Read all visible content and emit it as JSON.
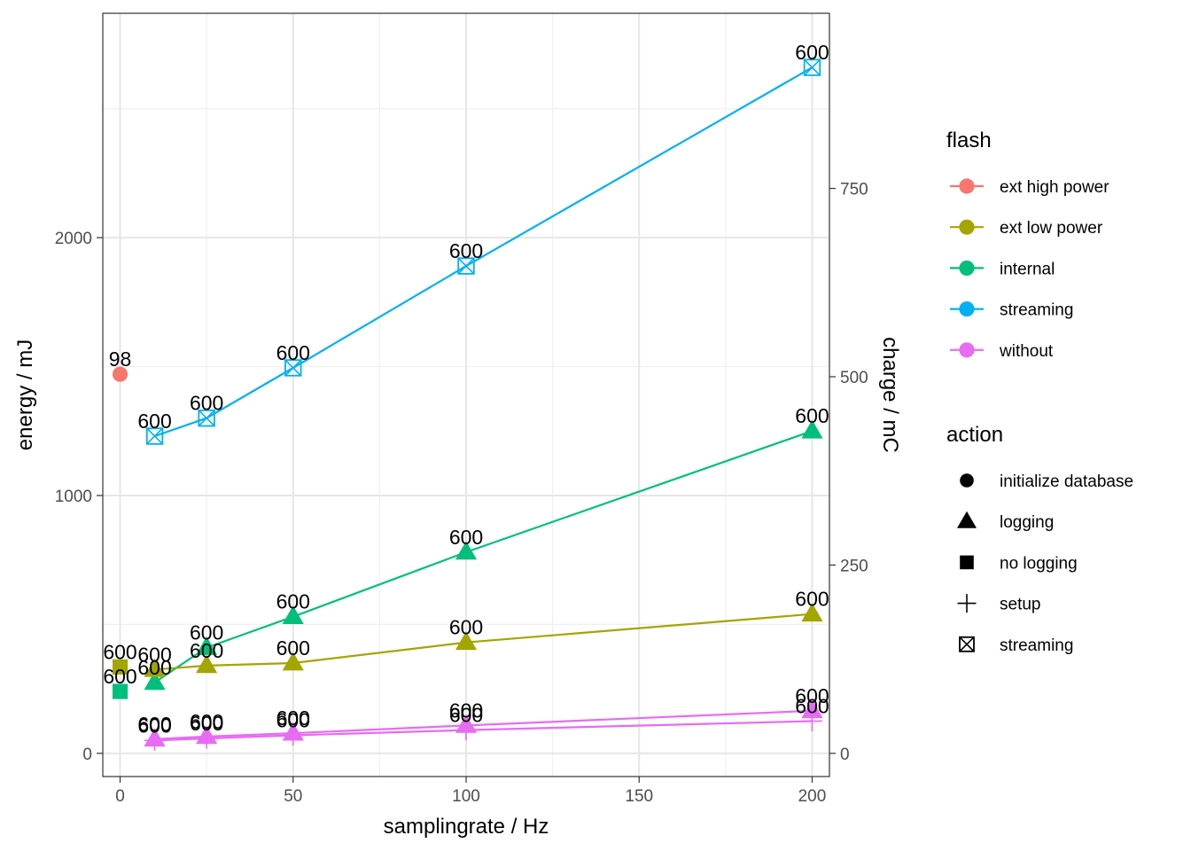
{
  "chart_data": {
    "type": "line",
    "xlabel": "samplingrate / Hz",
    "ylabel": "energy / mJ",
    "y2label": "charge / mC",
    "xlim": [
      -5,
      205
    ],
    "ylim": [
      -90,
      2870
    ],
    "y2lim": [
      -30.8,
      982.5
    ],
    "x_ticks": [
      0,
      50,
      100,
      150,
      200
    ],
    "y_ticks": [
      0,
      1000,
      2000
    ],
    "y2_ticks": [
      0,
      250,
      500,
      750
    ],
    "x_tick_labels": [
      "0",
      "50",
      "100",
      "150",
      "200"
    ],
    "y_tick_labels": [
      "0",
      "1000",
      "2000"
    ],
    "y2_tick_labels": [
      "0",
      "250",
      "500",
      "750"
    ],
    "grid": true,
    "legend_position": "right",
    "legends": [
      {
        "title": "flash",
        "entries": [
          {
            "label": "ext high power",
            "color": "#F8766D"
          },
          {
            "label": "ext low power",
            "color": "#A3A500"
          },
          {
            "label": "internal",
            "color": "#00BF7D"
          },
          {
            "label": "streaming",
            "color": "#00B0F6"
          },
          {
            "label": "without",
            "color": "#E76BF3"
          }
        ]
      },
      {
        "title": "action",
        "entries": [
          {
            "label": "initialize database",
            "shape": "circle"
          },
          {
            "label": "logging",
            "shape": "triangle"
          },
          {
            "label": "no logging",
            "shape": "square"
          },
          {
            "label": "setup",
            "shape": "plus"
          },
          {
            "label": "streaming",
            "shape": "boxcross"
          }
        ]
      }
    ],
    "series": [
      {
        "flash": "ext high power",
        "action": "initialize database",
        "color": "#F8766D",
        "shape": "circle",
        "points": [
          {
            "x": 0,
            "y": 1470,
            "label": "98"
          }
        ]
      },
      {
        "flash": "streaming",
        "action": "streaming",
        "color": "#00B0F6",
        "shape": "boxcross",
        "points": [
          {
            "x": 10,
            "y": 1230,
            "label": "600"
          },
          {
            "x": 25,
            "y": 1300,
            "label": "600"
          },
          {
            "x": 50,
            "y": 1495,
            "label": "600"
          },
          {
            "x": 100,
            "y": 1890,
            "label": "600"
          },
          {
            "x": 200,
            "y": 2660,
            "label": "600"
          }
        ]
      },
      {
        "flash": "internal",
        "action": "logging",
        "color": "#00BF7D",
        "shape": "triangle",
        "points": [
          {
            "x": 10,
            "y": 275,
            "label": "600"
          },
          {
            "x": 25,
            "y": 410,
            "label": "600"
          },
          {
            "x": 50,
            "y": 530,
            "label": "600"
          },
          {
            "x": 100,
            "y": 780,
            "label": "600"
          },
          {
            "x": 200,
            "y": 1250,
            "label": "600"
          }
        ]
      },
      {
        "flash": "internal",
        "action": "no logging",
        "color": "#00BF7D",
        "shape": "square",
        "points": [
          {
            "x": 0,
            "y": 240,
            "label": "600"
          }
        ]
      },
      {
        "flash": "ext low power",
        "action": "logging",
        "color": "#A3A500",
        "shape": "triangle",
        "points": [
          {
            "x": 10,
            "y": 325,
            "label": "600"
          },
          {
            "x": 25,
            "y": 340,
            "label": "600"
          },
          {
            "x": 50,
            "y": 350,
            "label": "600"
          },
          {
            "x": 100,
            "y": 430,
            "label": "600"
          },
          {
            "x": 200,
            "y": 540,
            "label": "600"
          }
        ]
      },
      {
        "flash": "ext low power",
        "action": "no logging",
        "color": "#A3A500",
        "shape": "square",
        "points": [
          {
            "x": 0,
            "y": 335,
            "label": "600"
          }
        ]
      },
      {
        "flash": "without",
        "action": "logging",
        "color": "#E76BF3",
        "shape": "triangle",
        "points": [
          {
            "x": 10,
            "y": 55,
            "label": "600"
          },
          {
            "x": 25,
            "y": 65,
            "label": "600"
          },
          {
            "x": 50,
            "y": 78,
            "label": "600"
          },
          {
            "x": 100,
            "y": 108,
            "label": "600"
          },
          {
            "x": 200,
            "y": 165,
            "label": "600"
          }
        ]
      },
      {
        "flash": "without",
        "action": "setup",
        "color": "#E76BF3",
        "shape": "plus",
        "points": [
          {
            "x": 10,
            "y": 50,
            "label": "600"
          },
          {
            "x": 25,
            "y": 58,
            "label": "600"
          },
          {
            "x": 50,
            "y": 70,
            "label": "600"
          },
          {
            "x": 100,
            "y": 90,
            "label": "600"
          },
          {
            "x": 200,
            "y": 125,
            "label": "600"
          }
        ]
      }
    ]
  }
}
